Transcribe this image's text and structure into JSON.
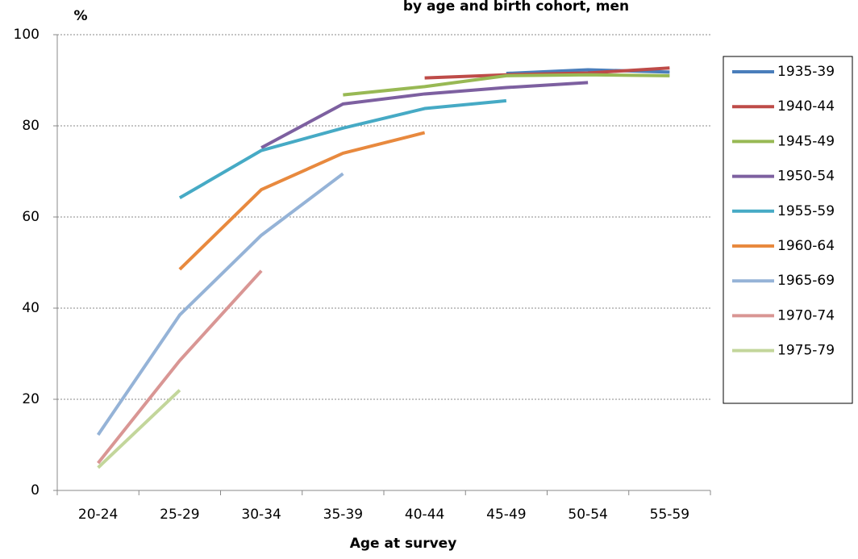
{
  "chart_data": {
    "type": "line",
    "title": "by age and birth cohort, men",
    "y_label": "%",
    "x_label": "Age at survey",
    "categories": [
      "20-24",
      "25-29",
      "30-34",
      "35-39",
      "40-44",
      "45-49",
      "50-54",
      "55-59"
    ],
    "series": [
      {
        "name": "1935-39",
        "color": "#4a7ebb",
        "values": [
          null,
          null,
          null,
          null,
          null,
          91.5,
          92.3,
          91.8
        ]
      },
      {
        "name": "1940-44",
        "color": "#be4b48",
        "values": [
          null,
          null,
          null,
          null,
          90.5,
          91.2,
          91.6,
          92.7
        ]
      },
      {
        "name": "1945-49",
        "color": "#98b954",
        "values": [
          null,
          null,
          null,
          86.8,
          88.6,
          91.0,
          91.2,
          91.0
        ]
      },
      {
        "name": "1950-54",
        "color": "#7d60a0",
        "values": [
          null,
          null,
          75.2,
          84.8,
          87.0,
          88.4,
          89.5,
          null
        ]
      },
      {
        "name": "1955-59",
        "color": "#46aac5",
        "values": [
          null,
          64.2,
          74.6,
          79.5,
          83.8,
          85.5,
          null,
          null
        ]
      },
      {
        "name": "1960-64",
        "color": "#e8893e",
        "values": [
          null,
          48.5,
          66.0,
          74.0,
          78.5,
          null,
          null,
          null
        ]
      },
      {
        "name": "1965-69",
        "color": "#95b3d7",
        "values": [
          12.2,
          38.5,
          56.0,
          69.5,
          null,
          null,
          null,
          null
        ]
      },
      {
        "name": "1970-74",
        "color": "#d99694",
        "values": [
          6.0,
          28.5,
          48.2,
          null,
          null,
          null,
          null,
          null
        ]
      },
      {
        "name": "1975-79",
        "color": "#c3d69b",
        "values": [
          5.0,
          22.0,
          null,
          null,
          null,
          null,
          null,
          null
        ]
      }
    ],
    "ylim": [
      0,
      100
    ],
    "yticks": [
      0,
      20,
      40,
      60,
      80,
      100
    ],
    "grid": true,
    "legend": "right"
  }
}
